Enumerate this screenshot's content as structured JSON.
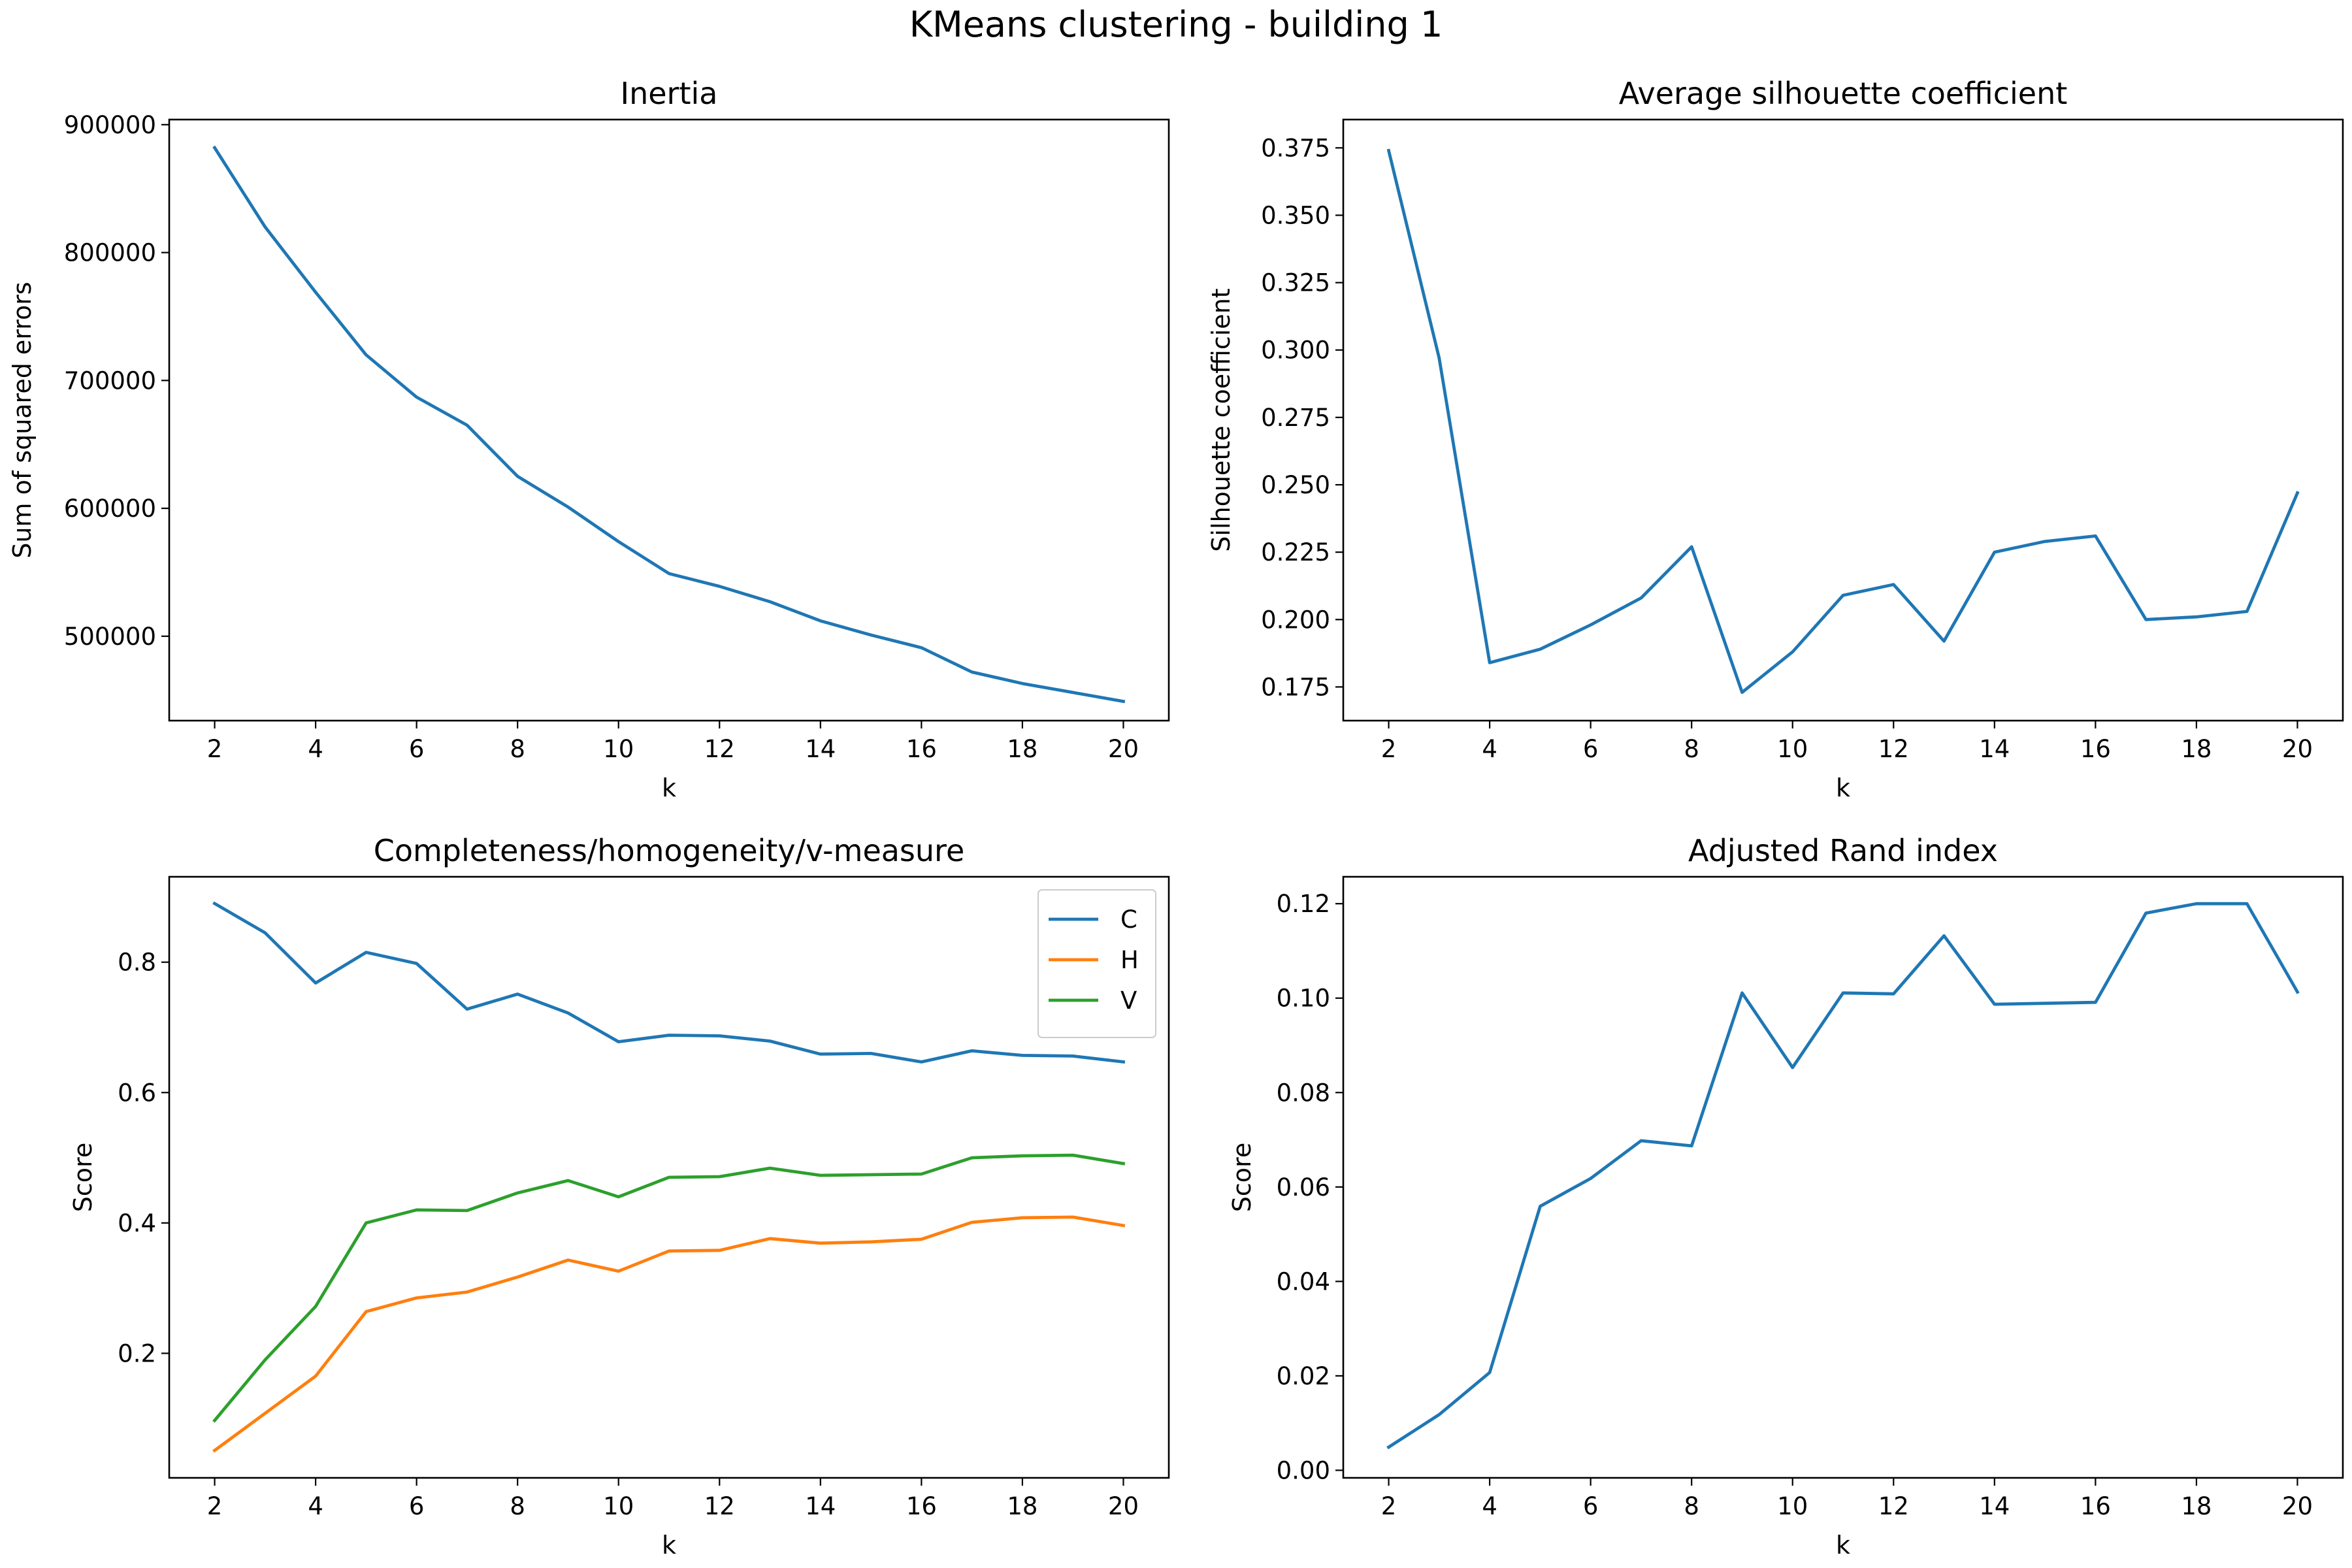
{
  "figure": {
    "title": "KMeans clustering - building 1"
  },
  "colors": {
    "C0": "#1f77b4",
    "C1": "#ff7f0e",
    "C2": "#2ca02c"
  },
  "chart_data": [
    {
      "type": "line",
      "title": "Inertia",
      "xlabel": "k",
      "ylabel": "Sum of squared errors",
      "x": [
        2,
        3,
        4,
        5,
        6,
        7,
        8,
        9,
        10,
        11,
        12,
        13,
        14,
        15,
        16,
        17,
        18,
        19,
        20
      ],
      "xlim": [
        1.1,
        20.9
      ],
      "ylim": [
        434000,
        904000
      ],
      "xticks": [
        2,
        4,
        6,
        8,
        10,
        12,
        14,
        16,
        18,
        20
      ],
      "xtick_labels": [
        "2",
        "4",
        "6",
        "8",
        "10",
        "12",
        "14",
        "16",
        "18",
        "20"
      ],
      "yticks": [
        500000,
        600000,
        700000,
        800000,
        900000
      ],
      "ytick_labels": [
        "500000",
        "600000",
        "700000",
        "800000",
        "900000"
      ],
      "legend": null,
      "series": [
        {
          "color": "#1f77b4",
          "values": [
            882000,
            820000,
            769000,
            720000,
            687000,
            665000,
            625000,
            601000,
            574000,
            549000,
            539000,
            527000,
            512000,
            501000,
            491000,
            472000,
            463000,
            456000,
            449000
          ]
        }
      ]
    },
    {
      "type": "line",
      "title": "Average silhouette coefficient",
      "xlabel": "k",
      "ylabel": "Silhouette coefficient",
      "x": [
        2,
        3,
        4,
        5,
        6,
        7,
        8,
        9,
        10,
        11,
        12,
        13,
        14,
        15,
        16,
        17,
        18,
        19,
        20
      ],
      "xlim": [
        1.1,
        20.9
      ],
      "ylim": [
        0.1625,
        0.3855
      ],
      "xticks": [
        2,
        4,
        6,
        8,
        10,
        12,
        14,
        16,
        18,
        20
      ],
      "xtick_labels": [
        "2",
        "4",
        "6",
        "8",
        "10",
        "12",
        "14",
        "16",
        "18",
        "20"
      ],
      "yticks": [
        0.175,
        0.2,
        0.225,
        0.25,
        0.275,
        0.3,
        0.325,
        0.35,
        0.375
      ],
      "ytick_labels": [
        "0.175",
        "0.200",
        "0.225",
        "0.250",
        "0.275",
        "0.300",
        "0.325",
        "0.350",
        "0.375"
      ],
      "legend": null,
      "series": [
        {
          "color": "#1f77b4",
          "values": [
            0.374,
            0.297,
            0.184,
            0.189,
            0.198,
            0.208,
            0.227,
            0.173,
            0.188,
            0.209,
            0.213,
            0.192,
            0.225,
            0.229,
            0.231,
            0.2,
            0.201,
            0.203,
            0.247
          ]
        }
      ]
    },
    {
      "type": "line",
      "title": "Completeness/homogeneity/v-measure",
      "xlabel": "k",
      "ylabel": "Score",
      "x": [
        2,
        3,
        4,
        5,
        6,
        7,
        8,
        9,
        10,
        11,
        12,
        13,
        14,
        15,
        16,
        17,
        18,
        19,
        20
      ],
      "xlim": [
        1.1,
        20.9
      ],
      "ylim": [
        0.009,
        0.931
      ],
      "xticks": [
        2,
        4,
        6,
        8,
        10,
        12,
        14,
        16,
        18,
        20
      ],
      "xtick_labels": [
        "2",
        "4",
        "6",
        "8",
        "10",
        "12",
        "14",
        "16",
        "18",
        "20"
      ],
      "yticks": [
        0.2,
        0.4,
        0.6,
        0.8
      ],
      "ytick_labels": [
        "0.2",
        "0.4",
        "0.6",
        "0.8"
      ],
      "legend": "upper right",
      "series": [
        {
          "name": "C",
          "color": "#1f77b4",
          "values": [
            0.89,
            0.845,
            0.768,
            0.815,
            0.798,
            0.728,
            0.751,
            0.722,
            0.678,
            0.688,
            0.687,
            0.679,
            0.659,
            0.66,
            0.647,
            0.664,
            0.657,
            0.656,
            0.647
          ]
        },
        {
          "name": "H",
          "color": "#ff7f0e",
          "values": [
            0.051,
            0.108,
            0.165,
            0.264,
            0.285,
            0.294,
            0.317,
            0.343,
            0.326,
            0.357,
            0.358,
            0.376,
            0.369,
            0.371,
            0.375,
            0.401,
            0.408,
            0.409,
            0.396
          ]
        },
        {
          "name": "V",
          "color": "#2ca02c",
          "values": [
            0.097,
            0.19,
            0.272,
            0.4,
            0.42,
            0.419,
            0.446,
            0.465,
            0.44,
            0.47,
            0.471,
            0.484,
            0.473,
            0.474,
            0.475,
            0.5,
            0.503,
            0.504,
            0.491
          ]
        }
      ]
    },
    {
      "type": "line",
      "title": "Adjusted Rand index",
      "xlabel": "k",
      "ylabel": "Score",
      "x": [
        2,
        3,
        4,
        5,
        6,
        7,
        8,
        9,
        10,
        11,
        12,
        13,
        14,
        15,
        16,
        17,
        18,
        19,
        20
      ],
      "xlim": [
        1.1,
        20.9
      ],
      "ylim": [
        -0.0016,
        0.1257
      ],
      "xticks": [
        2,
        4,
        6,
        8,
        10,
        12,
        14,
        16,
        18,
        20
      ],
      "xtick_labels": [
        "2",
        "4",
        "6",
        "8",
        "10",
        "12",
        "14",
        "16",
        "18",
        "20"
      ],
      "yticks": [
        0,
        0.02,
        0.04,
        0.06,
        0.08,
        0.1,
        0.12
      ],
      "ytick_labels": [
        "0.00",
        "0.02",
        "0.04",
        "0.06",
        "0.08",
        "0.10",
        "0.12"
      ],
      "legend": null,
      "series": [
        {
          "color": "#1f77b4",
          "values": [
            0.0049,
            0.0118,
            0.0207,
            0.0559,
            0.0618,
            0.0698,
            0.0687,
            0.1011,
            0.0853,
            0.1011,
            0.1009,
            0.1132,
            0.0987,
            0.0989,
            0.0991,
            0.118,
            0.12,
            0.12,
            0.1013
          ]
        }
      ]
    }
  ]
}
